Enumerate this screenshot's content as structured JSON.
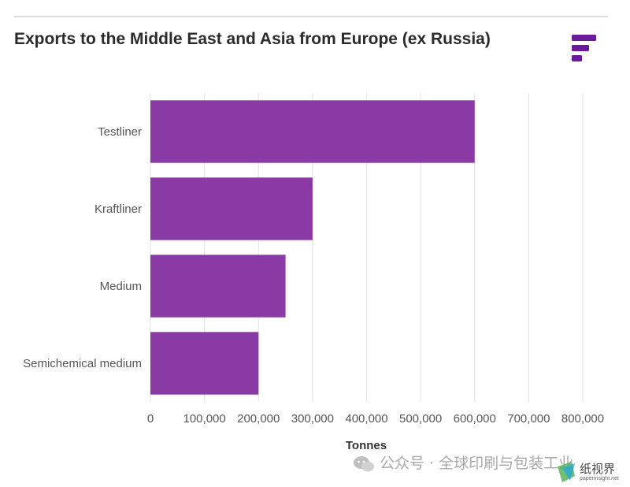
{
  "header": {
    "title": "Exports to the Middle East and Asia from Europe (ex Russia)"
  },
  "chart_data": {
    "type": "bar",
    "orientation": "horizontal",
    "title": "Exports to the Middle East and Asia from Europe (ex Russia)",
    "xlabel": "Tonnes",
    "ylabel": "",
    "categories": [
      "Testliner",
      "Kraftliner",
      "Medium",
      "Semichemical medium"
    ],
    "values": [
      600000,
      300000,
      250000,
      200000
    ],
    "xlim": [
      0,
      800000
    ],
    "ticks": [
      0,
      100000,
      200000,
      300000,
      400000,
      500000,
      600000,
      700000,
      800000
    ],
    "tick_labels": [
      "0",
      "100,000",
      "200,000",
      "300,000",
      "400,000",
      "500,000",
      "600,000",
      "700,000",
      "800,000"
    ],
    "grid": true,
    "bar_color": "#8a3aa5",
    "logo_color": "#6a1b9a"
  },
  "watermark": {
    "text": "公众号 · 全球印刷与包装工业",
    "site_name": "纸视界",
    "site_url": "paperinsight.net"
  }
}
